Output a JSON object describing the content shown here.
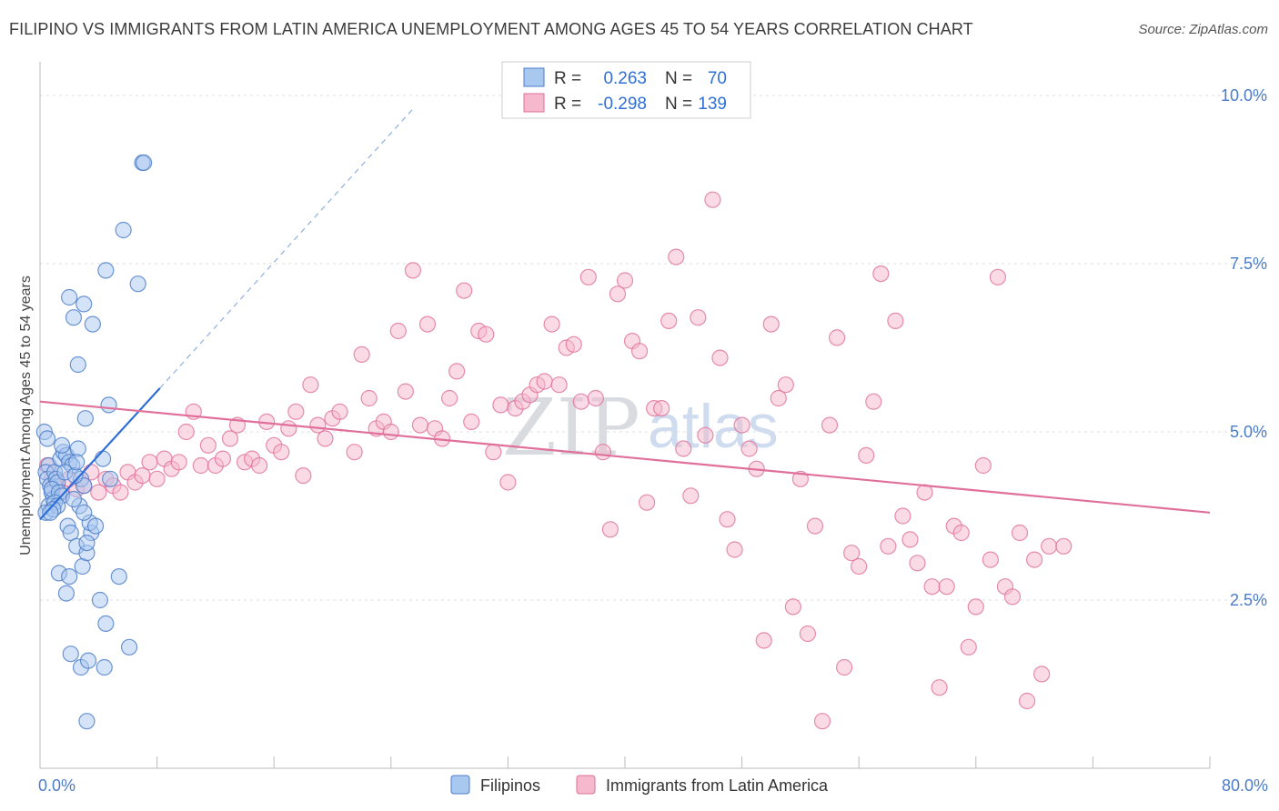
{
  "title": "FILIPINO VS IMMIGRANTS FROM LATIN AMERICA UNEMPLOYMENT AMONG AGES 45 TO 54 YEARS CORRELATION CHART",
  "source": "Source: ZipAtlas.com",
  "watermark": {
    "zip": "ZIP",
    "atlas": "atlas"
  },
  "colors": {
    "blue": "#4a7cc8",
    "blue_fill": "#a9c8f0",
    "blue_line": "#2f6fd6",
    "pink": "#e0709a",
    "pink_fill": "#f5b8cc",
    "grid": "#dddddd"
  },
  "legend": {
    "rows": [
      {
        "r_label": "R =",
        "r_value": "0.263",
        "n_label": "N =",
        "n_value": "70"
      },
      {
        "r_label": "R =",
        "r_value": "-0.298",
        "n_label": "N =",
        "n_value": "139"
      }
    ]
  },
  "chart_data": {
    "type": "scatter",
    "title": "FILIPINO VS IMMIGRANTS FROM LATIN AMERICA UNEMPLOYMENT AMONG AGES 45 TO 54 YEARS CORRELATION CHART",
    "xlabel": "",
    "ylabel": "Unemployment Among Ages 45 to 54 years",
    "xlim": [
      0,
      80
    ],
    "ylim": [
      0,
      10.5
    ],
    "x_tick_labels": [
      "0.0%",
      "80.0%"
    ],
    "y_ticks": [
      2.5,
      5.0,
      7.5,
      10.0
    ],
    "y_tick_labels": [
      "2.5%",
      "5.0%",
      "7.5%",
      "10.0%"
    ],
    "grid": true,
    "series": [
      {
        "name": "Filipinos",
        "r": 0.263,
        "n": 70,
        "trend": {
          "x0": 0.0,
          "y0": 3.7,
          "x1": 8.2,
          "y1": 5.65,
          "dashed_to_x": 25.5,
          "dashed_to_y": 9.8
        },
        "points": [
          [
            0.3,
            5.0
          ],
          [
            0.5,
            4.9
          ],
          [
            0.6,
            4.5
          ],
          [
            0.4,
            4.4
          ],
          [
            0.5,
            4.3
          ],
          [
            0.7,
            4.2
          ],
          [
            0.8,
            4.1
          ],
          [
            0.9,
            4.0
          ],
          [
            0.6,
            3.9
          ],
          [
            0.4,
            3.8
          ],
          [
            1.0,
            4.4
          ],
          [
            1.1,
            4.3
          ],
          [
            1.2,
            4.25
          ],
          [
            0.8,
            4.15
          ],
          [
            1.3,
            4.1
          ],
          [
            1.5,
            4.05
          ],
          [
            1.0,
            3.95
          ],
          [
            1.2,
            3.9
          ],
          [
            0.9,
            3.85
          ],
          [
            0.7,
            3.8
          ],
          [
            1.4,
            4.6
          ],
          [
            1.6,
            4.7
          ],
          [
            1.8,
            4.65
          ],
          [
            2.0,
            4.55
          ],
          [
            2.2,
            4.5
          ],
          [
            2.6,
            4.75
          ],
          [
            2.8,
            4.3
          ],
          [
            3.0,
            4.2
          ],
          [
            1.7,
            4.4
          ],
          [
            2.4,
            4.35
          ],
          [
            1.9,
            3.6
          ],
          [
            2.1,
            3.5
          ],
          [
            2.5,
            3.3
          ],
          [
            2.9,
            3.0
          ],
          [
            3.2,
            3.2
          ],
          [
            3.5,
            3.5
          ],
          [
            3.4,
            3.65
          ],
          [
            2.7,
            3.9
          ],
          [
            3.0,
            3.8
          ],
          [
            2.3,
            4.0
          ],
          [
            1.3,
            2.9
          ],
          [
            1.8,
            2.6
          ],
          [
            2.0,
            2.85
          ],
          [
            3.2,
            3.35
          ],
          [
            4.1,
            2.5
          ],
          [
            4.5,
            2.15
          ],
          [
            5.4,
            2.85
          ],
          [
            3.8,
            3.6
          ],
          [
            4.3,
            4.6
          ],
          [
            4.8,
            4.3
          ],
          [
            2.1,
            1.7
          ],
          [
            2.8,
            1.5
          ],
          [
            3.3,
            1.6
          ],
          [
            4.4,
            1.5
          ],
          [
            6.1,
            1.8
          ],
          [
            3.2,
            0.7
          ],
          [
            2.6,
            6.0
          ],
          [
            3.0,
            6.9
          ],
          [
            2.3,
            6.7
          ],
          [
            3.6,
            6.6
          ],
          [
            2.0,
            7.0
          ],
          [
            4.5,
            7.4
          ],
          [
            5.7,
            8.0
          ],
          [
            6.7,
            7.2
          ],
          [
            7.0,
            9.0
          ],
          [
            7.1,
            9.0
          ],
          [
            4.7,
            5.4
          ],
          [
            3.1,
            5.2
          ],
          [
            1.5,
            4.8
          ],
          [
            2.5,
            4.55
          ]
        ]
      },
      {
        "name": "Immigrants from Latin America",
        "r": -0.298,
        "n": 139,
        "trend": {
          "x0": 0.0,
          "y0": 5.45,
          "x1": 80.0,
          "y1": 3.8
        },
        "points": [
          [
            0.5,
            4.5
          ],
          [
            0.8,
            4.3
          ],
          [
            1.0,
            4.2
          ],
          [
            1.5,
            4.1
          ],
          [
            2.0,
            4.3
          ],
          [
            2.5,
            4.15
          ],
          [
            3.0,
            4.2
          ],
          [
            3.5,
            4.4
          ],
          [
            4.0,
            4.1
          ],
          [
            4.5,
            4.3
          ],
          [
            5.0,
            4.2
          ],
          [
            5.5,
            4.1
          ],
          [
            6.0,
            4.4
          ],
          [
            6.5,
            4.25
          ],
          [
            7.0,
            4.35
          ],
          [
            7.5,
            4.55
          ],
          [
            8.0,
            4.3
          ],
          [
            8.5,
            4.6
          ],
          [
            9.0,
            4.45
          ],
          [
            9.5,
            4.55
          ],
          [
            10.0,
            5.0
          ],
          [
            10.5,
            5.3
          ],
          [
            11.0,
            4.5
          ],
          [
            11.5,
            4.8
          ],
          [
            12.0,
            4.5
          ],
          [
            12.5,
            4.6
          ],
          [
            13.0,
            4.9
          ],
          [
            13.5,
            5.1
          ],
          [
            14.0,
            4.55
          ],
          [
            14.5,
            4.6
          ],
          [
            15.0,
            4.5
          ],
          [
            15.5,
            5.15
          ],
          [
            16.0,
            4.8
          ],
          [
            16.5,
            4.7
          ],
          [
            17.0,
            5.05
          ],
          [
            17.5,
            5.3
          ],
          [
            18.0,
            4.35
          ],
          [
            18.5,
            5.7
          ],
          [
            19.0,
            5.1
          ],
          [
            19.5,
            4.9
          ],
          [
            20.0,
            5.2
          ],
          [
            20.5,
            5.3
          ],
          [
            21.5,
            4.7
          ],
          [
            22.0,
            6.15
          ],
          [
            22.5,
            5.5
          ],
          [
            23.0,
            5.05
          ],
          [
            23.5,
            5.15
          ],
          [
            24.0,
            5.0
          ],
          [
            24.5,
            6.5
          ],
          [
            25.0,
            5.6
          ],
          [
            25.5,
            7.4
          ],
          [
            26.0,
            5.1
          ],
          [
            26.5,
            6.6
          ],
          [
            27.0,
            5.05
          ],
          [
            27.5,
            4.9
          ],
          [
            28.0,
            5.5
          ],
          [
            28.5,
            5.9
          ],
          [
            29.0,
            7.1
          ],
          [
            29.5,
            5.15
          ],
          [
            30.0,
            6.5
          ],
          [
            30.5,
            6.45
          ],
          [
            31.0,
            4.7
          ],
          [
            31.5,
            5.4
          ],
          [
            32.0,
            4.25
          ],
          [
            32.5,
            5.35
          ],
          [
            33.0,
            5.45
          ],
          [
            33.5,
            5.55
          ],
          [
            34.0,
            5.7
          ],
          [
            34.5,
            5.75
          ],
          [
            35.0,
            6.6
          ],
          [
            35.5,
            5.7
          ],
          [
            36.0,
            6.25
          ],
          [
            36.5,
            6.3
          ],
          [
            37.0,
            5.45
          ],
          [
            37.5,
            7.3
          ],
          [
            38.0,
            5.5
          ],
          [
            38.5,
            4.7
          ],
          [
            39.0,
            3.55
          ],
          [
            39.5,
            7.05
          ],
          [
            40.0,
            7.25
          ],
          [
            40.5,
            6.35
          ],
          [
            41.0,
            6.2
          ],
          [
            41.5,
            3.95
          ],
          [
            42.0,
            5.35
          ],
          [
            42.5,
            5.35
          ],
          [
            43.0,
            6.65
          ],
          [
            43.5,
            7.6
          ],
          [
            44.0,
            4.75
          ],
          [
            44.5,
            4.05
          ],
          [
            45.0,
            6.7
          ],
          [
            45.5,
            4.95
          ],
          [
            46.0,
            8.45
          ],
          [
            46.5,
            6.1
          ],
          [
            47.0,
            3.7
          ],
          [
            47.5,
            3.25
          ],
          [
            48.0,
            5.1
          ],
          [
            48.5,
            4.75
          ],
          [
            49.0,
            4.45
          ],
          [
            49.5,
            1.9
          ],
          [
            50.0,
            6.6
          ],
          [
            50.5,
            5.5
          ],
          [
            51.0,
            5.7
          ],
          [
            51.5,
            2.4
          ],
          [
            52.0,
            4.3
          ],
          [
            52.5,
            2.0
          ],
          [
            53.0,
            3.6
          ],
          [
            53.5,
            0.7
          ],
          [
            54.0,
            5.1
          ],
          [
            54.5,
            6.4
          ],
          [
            55.0,
            1.5
          ],
          [
            55.5,
            3.2
          ],
          [
            56.0,
            3.0
          ],
          [
            56.5,
            4.65
          ],
          [
            57.0,
            5.45
          ],
          [
            57.5,
            7.35
          ],
          [
            58.0,
            3.3
          ],
          [
            58.5,
            6.65
          ],
          [
            59.0,
            3.75
          ],
          [
            59.5,
            3.4
          ],
          [
            60.0,
            3.05
          ],
          [
            60.5,
            4.1
          ],
          [
            61.0,
            2.7
          ],
          [
            61.5,
            1.2
          ],
          [
            62.0,
            2.7
          ],
          [
            62.5,
            3.6
          ],
          [
            63.0,
            3.5
          ],
          [
            63.5,
            1.8
          ],
          [
            64.0,
            2.4
          ],
          [
            64.5,
            4.5
          ],
          [
            65.0,
            3.1
          ],
          [
            65.5,
            7.3
          ],
          [
            66.0,
            2.7
          ],
          [
            66.5,
            2.55
          ],
          [
            67.0,
            3.5
          ],
          [
            67.5,
            1.0
          ],
          [
            68.0,
            3.1
          ],
          [
            68.5,
            1.4
          ],
          [
            69.0,
            3.3
          ],
          [
            70.0,
            3.3
          ]
        ]
      }
    ]
  },
  "bottom_legend": [
    "Filipinos",
    "Immigrants from Latin America"
  ]
}
